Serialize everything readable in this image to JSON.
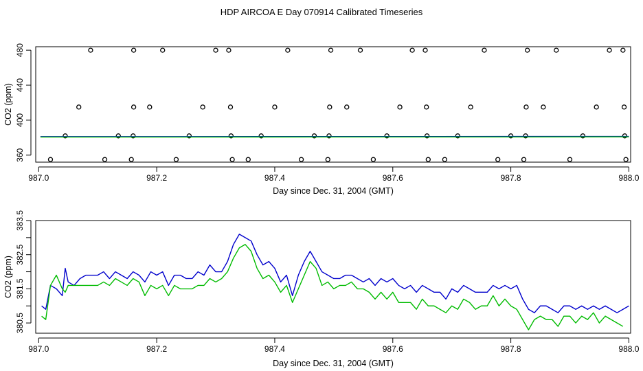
{
  "figure": {
    "title": "HDP AIRCOA E  Day 070914  Calibrated Timeseries"
  },
  "colors": {
    "series_blue": "#0000cc",
    "series_green": "#00bb00",
    "axes": "#000000"
  },
  "chart_data": [
    {
      "type": "scatter",
      "xlabel": "Day since Dec. 31, 2004 (GMT)",
      "ylabel": "CO2 (ppm)",
      "xlim": [
        986.995,
        988.003
      ],
      "ylim": [
        352,
        484
      ],
      "xticks": [
        987.0,
        987.2,
        987.4,
        987.6,
        987.8,
        988.0
      ],
      "xtick_labels": [
        "987.0",
        "987.2",
        "987.4",
        "987.6",
        "987.8",
        "988.0"
      ],
      "yticks": [
        360,
        400,
        440,
        480
      ],
      "ytick_labels": [
        "360",
        "400",
        "440",
        "480"
      ],
      "grid": false,
      "legend": "none",
      "series": [
        {
          "marker": "open-circle",
          "x": [
            987.02,
            987.045,
            987.068,
            987.088,
            987.112,
            987.135,
            987.157,
            987.16,
            987.161,
            987.161,
            987.188,
            987.21,
            987.233,
            987.255,
            987.278,
            987.3,
            987.322,
            987.325,
            987.326,
            987.328,
            987.355,
            987.377,
            987.4,
            987.422,
            987.445,
            987.467,
            987.49,
            987.492,
            987.493,
            987.495,
            987.522,
            987.545,
            987.567,
            987.59,
            987.612,
            987.633,
            987.655,
            987.657,
            987.658,
            987.66,
            987.688,
            987.71,
            987.732,
            987.755,
            987.778,
            987.8,
            987.822,
            987.825,
            987.826,
            987.828,
            987.855,
            987.877,
            987.9,
            987.922,
            987.945,
            987.967,
            987.99,
            987.992,
            987.993,
            987.995
          ],
          "y": [
            355,
            382,
            415,
            480,
            355,
            382,
            355,
            382,
            415,
            480,
            415,
            480,
            355,
            382,
            415,
            480,
            480,
            415,
            382,
            355,
            355,
            382,
            415,
            480,
            355,
            382,
            355,
            382,
            415,
            480,
            415,
            480,
            355,
            382,
            415,
            480,
            480,
            415,
            382,
            355,
            355,
            382,
            415,
            480,
            355,
            382,
            355,
            382,
            415,
            480,
            415,
            480,
            355,
            382,
            415,
            480,
            480,
            415,
            382,
            355
          ]
        },
        {
          "name": "",
          "line": true,
          "color": "#0000cc",
          "x": [
            987.003,
            988.0
          ],
          "y": [
            381.2,
            381.4
          ]
        },
        {
          "name": "",
          "line": true,
          "color": "#00bb00",
          "x": [
            987.003,
            988.0
          ],
          "y": [
            380.7,
            380.9
          ]
        }
      ]
    },
    {
      "type": "line",
      "xlabel": "Day since Dec. 31, 2004 (GMT)",
      "ylabel": "CO2 (ppm)",
      "xlim": [
        986.995,
        988.003
      ],
      "ylim": [
        380.2,
        383.5
      ],
      "xticks": [
        987.0,
        987.2,
        987.4,
        987.6,
        987.8,
        988.0
      ],
      "xtick_labels": [
        "987.0",
        "987.2",
        "987.4",
        "987.6",
        "987.8",
        "988.0"
      ],
      "yticks": [
        380.5,
        381.0,
        381.5,
        382.0,
        382.5,
        383.0,
        383.5
      ],
      "ytick_labels": [
        "380.5",
        "381.5",
        "382.5",
        "383.5"
      ],
      "ytick_label_values": [
        380.5,
        381.5,
        382.5,
        383.5
      ],
      "grid": false,
      "legend": "none",
      "series": [
        {
          "name": "",
          "color": "#0000cc",
          "x": [
            987.005,
            987.012,
            987.02,
            987.03,
            987.04,
            987.045,
            987.05,
            987.06,
            987.07,
            987.08,
            987.09,
            987.1,
            987.11,
            987.12,
            987.13,
            987.14,
            987.15,
            987.16,
            987.17,
            987.18,
            987.19,
            987.2,
            987.21,
            987.22,
            987.23,
            987.24,
            987.25,
            987.26,
            987.27,
            987.28,
            987.29,
            987.3,
            987.31,
            987.32,
            987.33,
            987.34,
            987.35,
            987.36,
            987.37,
            987.38,
            987.39,
            987.4,
            987.41,
            987.42,
            987.43,
            987.44,
            987.45,
            987.46,
            987.47,
            987.48,
            987.49,
            987.5,
            987.51,
            987.52,
            987.53,
            987.54,
            987.55,
            987.56,
            987.57,
            987.58,
            987.59,
            987.6,
            987.61,
            987.62,
            987.63,
            987.64,
            987.65,
            987.66,
            987.67,
            987.68,
            987.69,
            987.7,
            987.71,
            987.72,
            987.73,
            987.74,
            987.75,
            987.76,
            987.77,
            987.78,
            987.79,
            987.8,
            987.81,
            987.82,
            987.83,
            987.84,
            987.85,
            987.86,
            987.87,
            987.88,
            987.89,
            987.9,
            987.91,
            987.92,
            987.93,
            987.94,
            987.95,
            987.96,
            987.97,
            987.98,
            987.99,
            988.0
          ],
          "y": [
            381.0,
            380.9,
            381.6,
            381.5,
            381.3,
            382.1,
            381.7,
            381.6,
            381.8,
            381.9,
            381.9,
            381.9,
            382.0,
            381.8,
            382.0,
            381.9,
            381.8,
            382.0,
            381.9,
            381.7,
            382.0,
            381.9,
            382.0,
            381.6,
            381.9,
            381.9,
            381.8,
            381.8,
            382.0,
            381.9,
            382.2,
            382.0,
            382.0,
            382.3,
            382.8,
            383.1,
            383.0,
            382.9,
            382.5,
            382.2,
            382.3,
            382.1,
            381.7,
            381.9,
            381.3,
            381.9,
            382.3,
            382.6,
            382.3,
            382.0,
            381.9,
            381.8,
            381.8,
            381.9,
            381.9,
            381.8,
            381.7,
            381.8,
            381.6,
            381.8,
            381.7,
            381.8,
            381.6,
            381.5,
            381.6,
            381.4,
            381.6,
            381.5,
            381.4,
            381.4,
            381.2,
            381.5,
            381.4,
            381.6,
            381.5,
            381.4,
            381.4,
            381.4,
            381.6,
            381.5,
            381.6,
            381.5,
            381.6,
            381.2,
            380.9,
            380.8,
            381.0,
            381.0,
            380.9,
            380.8,
            381.0,
            381.0,
            380.9,
            381.0,
            380.9,
            381.0,
            380.9,
            381.0,
            380.9,
            380.8,
            380.9,
            381.0
          ]
        },
        {
          "name": "",
          "color": "#00bb00",
          "x": [
            987.005,
            987.012,
            987.02,
            987.03,
            987.04,
            987.045,
            987.05,
            987.06,
            987.07,
            987.08,
            987.09,
            987.1,
            987.11,
            987.12,
            987.13,
            987.14,
            987.15,
            987.16,
            987.17,
            987.18,
            987.19,
            987.2,
            987.21,
            987.22,
            987.23,
            987.24,
            987.25,
            987.26,
            987.27,
            987.28,
            987.29,
            987.3,
            987.31,
            987.32,
            987.33,
            987.34,
            987.35,
            987.36,
            987.37,
            987.38,
            987.39,
            987.4,
            987.41,
            987.42,
            987.43,
            987.44,
            987.45,
            987.46,
            987.47,
            987.48,
            987.49,
            987.5,
            987.51,
            987.52,
            987.53,
            987.54,
            987.55,
            987.56,
            987.57,
            987.58,
            987.59,
            987.6,
            987.61,
            987.62,
            987.63,
            987.64,
            987.65,
            987.66,
            987.67,
            987.68,
            987.69,
            987.7,
            987.71,
            987.72,
            987.73,
            987.74,
            987.75,
            987.76,
            987.77,
            987.78,
            987.79,
            987.8,
            987.81,
            987.82,
            987.83,
            987.84,
            987.85,
            987.86,
            987.87,
            987.88,
            987.89,
            987.9,
            987.91,
            987.92,
            987.93,
            987.94,
            987.95,
            987.96,
            987.97,
            987.98,
            987.99
          ],
          "y": [
            380.7,
            380.6,
            381.6,
            381.9,
            381.5,
            381.4,
            381.6,
            381.6,
            381.6,
            381.6,
            381.6,
            381.6,
            381.7,
            381.6,
            381.8,
            381.7,
            381.6,
            381.8,
            381.7,
            381.3,
            381.6,
            381.5,
            381.6,
            381.3,
            381.6,
            381.5,
            381.5,
            381.5,
            381.6,
            381.6,
            381.8,
            381.7,
            381.8,
            382.0,
            382.4,
            382.7,
            382.8,
            382.6,
            382.1,
            381.8,
            381.9,
            381.7,
            381.4,
            381.6,
            381.1,
            381.5,
            381.9,
            382.3,
            382.1,
            381.6,
            381.7,
            381.5,
            381.6,
            381.6,
            381.7,
            381.5,
            381.5,
            381.4,
            381.2,
            381.4,
            381.2,
            381.4,
            381.1,
            381.1,
            381.1,
            380.9,
            381.2,
            381.0,
            381.0,
            380.9,
            380.8,
            381.0,
            380.9,
            381.2,
            381.1,
            380.9,
            381.0,
            381.0,
            381.3,
            381.0,
            381.2,
            381.0,
            380.9,
            380.6,
            380.3,
            380.6,
            380.7,
            380.6,
            380.6,
            380.4,
            380.7,
            380.7,
            380.5,
            380.7,
            380.6,
            380.8,
            380.5,
            380.7,
            380.6,
            380.5,
            380.4
          ]
        }
      ]
    }
  ]
}
